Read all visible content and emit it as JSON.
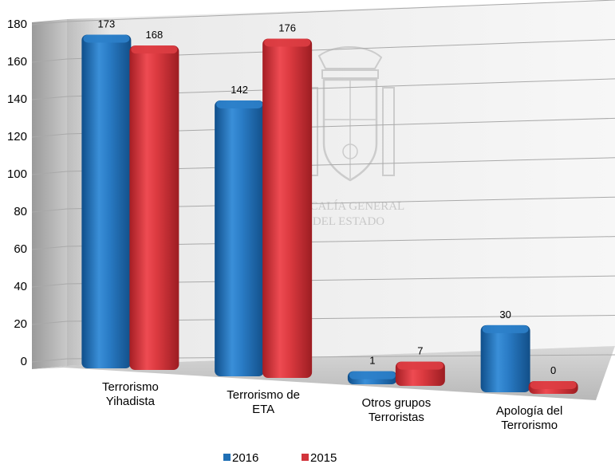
{
  "chart_data": {
    "type": "bar",
    "categories": [
      [
        "Terrorismo",
        "Yihadista"
      ],
      [
        "Terrorismo de",
        "ETA"
      ],
      [
        "Otros grupos",
        "Terroristas"
      ],
      [
        "Apología del",
        "Terrorismo"
      ]
    ],
    "series": [
      {
        "name": "2016",
        "values": [
          173,
          142,
          1,
          30
        ],
        "color": "#1f6fb5"
      },
      {
        "name": "2015",
        "values": [
          168,
          176,
          7,
          0
        ],
        "color": "#d2343b"
      }
    ],
    "ylim": [
      0,
      180
    ],
    "yticks": [
      0,
      20,
      40,
      60,
      80,
      100,
      120,
      140,
      160,
      180
    ],
    "grid": true,
    "legend": "bottom-center",
    "style": "3d-cylinder",
    "watermark": {
      "icon": "coat-of-arms-icon",
      "lines": [
        "FISCALÍA GENERAL",
        "DEL ESTADO"
      ]
    }
  }
}
